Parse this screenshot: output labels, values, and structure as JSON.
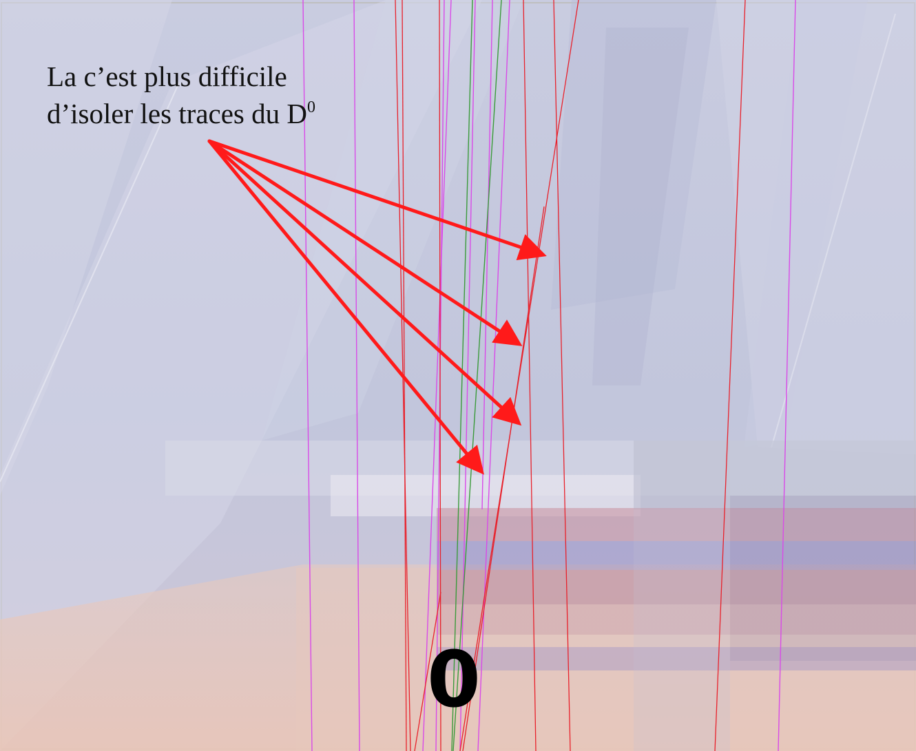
{
  "annotation": {
    "line1": "La c’est plus difficile",
    "line2_prefix": "d’isoler  les traces du D",
    "line2_superscript": "0"
  },
  "vertex_label": "0",
  "colors": {
    "background_blue": "#c6c9de",
    "lower_peach": "#e6c3b9",
    "red_track": "#e8202a",
    "magenta_track": "#d94ae8",
    "green_track": "#3a9a3a",
    "arrow": "#ff1a1a",
    "text": "#111111"
  },
  "icons": {
    "arrow": "arrow-icon"
  }
}
